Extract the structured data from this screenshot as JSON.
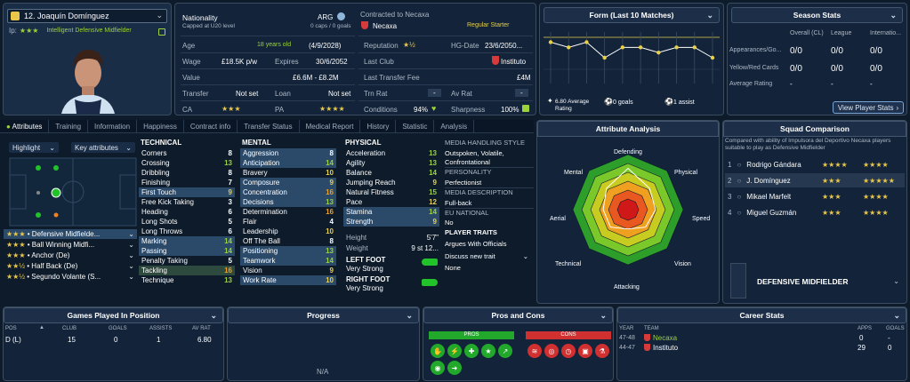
{
  "player": {
    "name": "12. Joaquín Domínguez",
    "desc": "Intelligent  Defensive Midfielder",
    "ip": "Ip:",
    "num_badge": "12"
  },
  "info": {
    "nationality_label": "Nationality",
    "nationality_value": "ARG",
    "capped": "Capped at U20 level",
    "caps": "0 caps / 0 goals",
    "contracted": "Contracted to Necaxa",
    "club": "Necaxa",
    "squad_status": "Regular Starter",
    "age_label": "Age",
    "age_value": "18 years old",
    "dob": "(4/9/2028)",
    "wage_label": "Wage",
    "wage_value": "£18.5K p/w",
    "expires_label": "Expires",
    "expires_value": "30/6/2052",
    "value_label": "Value",
    "value_value": "£6.6M - £8.2M",
    "reputation_label": "Reputation",
    "hg_label": "HG-Date",
    "hg_value": "23/6/2050...",
    "last_club_label": "Last Club",
    "last_club_value": "Instituto",
    "fee_label": "Last Transfer Fee",
    "fee_value": "£4M",
    "transfer_label": "Transfer",
    "transfer_value": "Not set",
    "loan_label": "Loan",
    "loan_value": "Not set",
    "trn_label": "Trn Rat",
    "trn_value": "-",
    "av_label": "Av Rat",
    "av_value": "-",
    "ca_label": "CA",
    "pa_label": "PA",
    "conditions_label": "Conditions",
    "conditions_value": "94%",
    "sharpness_label": "Sharpness",
    "sharpness_value": "100%"
  },
  "form": {
    "title": "Form (Last 10 Matches)",
    "avg": "6.80 Average Rating",
    "goals": "0 goals",
    "assists": "1 assist",
    "values": [
      6.9,
      6.8,
      6.9,
      6.6,
      6.8,
      6.8,
      6.7,
      6.8,
      6.8,
      6.6
    ]
  },
  "season": {
    "title": "Season Stats",
    "cols": [
      "Overall (CL)",
      "League",
      "Internatio..."
    ],
    "rows": [
      {
        "label": "Appearances/Go...",
        "v": [
          "0/0",
          "0/0",
          "0/0"
        ]
      },
      {
        "label": "Yellow/Red Cards",
        "v": [
          "0/0",
          "0/0",
          "0/0"
        ]
      },
      {
        "label": "Average Rating",
        "v": [
          "-",
          "-",
          "-"
        ]
      }
    ],
    "button": "View Player Stats"
  },
  "tabs": [
    "Attributes",
    "Training",
    "Information",
    "Happiness",
    "Contract info",
    "Transfer Status",
    "Medical Report",
    "History",
    "Statistic",
    "Analysis"
  ],
  "highlight": "Highlight",
  "keyattr": "Key attributes",
  "roles": [
    {
      "name": "Defensive Midfielde...",
      "stars": "★★★"
    },
    {
      "name": "Ball Winning Midfi...",
      "stars": "★★★"
    },
    {
      "name": "Anchor (De)",
      "stars": "★★★"
    },
    {
      "name": "Half Back (De)",
      "stars": "★★½"
    },
    {
      "name": "Segundo Volante (S...",
      "stars": "★★½"
    }
  ],
  "technical": {
    "title": "TECHNICAL",
    "items": [
      [
        "Corners",
        "8"
      ],
      [
        "Crossing",
        "13"
      ],
      [
        "Dribbling",
        "8"
      ],
      [
        "Finishing",
        "7"
      ],
      [
        "First Touch",
        "9"
      ],
      [
        "Free Kick Taking",
        "3"
      ],
      [
        "Heading",
        "6"
      ],
      [
        "Long Shots",
        "5"
      ],
      [
        "Long Throws",
        "6"
      ],
      [
        "Marking",
        "14"
      ],
      [
        "Passing",
        "14"
      ],
      [
        "Penalty Taking",
        "5"
      ],
      [
        "Tackling",
        "16"
      ],
      [
        "Technique",
        "13"
      ]
    ]
  },
  "mental": {
    "title": "MENTAL",
    "items": [
      [
        "Aggression",
        "8"
      ],
      [
        "Anticipation",
        "14"
      ],
      [
        "Bravery",
        "10"
      ],
      [
        "Composure",
        "9"
      ],
      [
        "Concentration",
        "16"
      ],
      [
        "Decisions",
        "13"
      ],
      [
        "Determination",
        "16"
      ],
      [
        "Flair",
        "4"
      ],
      [
        "Leadership",
        "10"
      ],
      [
        "Off The Ball",
        "8"
      ],
      [
        "Positioning",
        "13"
      ],
      [
        "Teamwork",
        "14"
      ],
      [
        "Vision",
        "9"
      ],
      [
        "Work Rate",
        "10"
      ]
    ]
  },
  "physical": {
    "title": "PHYSICAL",
    "items": [
      [
        "Acceleration",
        "13"
      ],
      [
        "Agility",
        "13"
      ],
      [
        "Balance",
        "14"
      ],
      [
        "Jumping Reach",
        "9"
      ],
      [
        "Natural Fitness",
        "15"
      ],
      [
        "Pace",
        "12"
      ],
      [
        "Stamina",
        "14"
      ],
      [
        "Strength",
        "9"
      ]
    ]
  },
  "physical_extra": {
    "height_label": "Height",
    "height_value": "5'7\"",
    "weight_label": "Weight",
    "weight_value": "9 st 12...",
    "left_foot_label": "LEFT FOOT",
    "left_foot_value": "Very Strong",
    "right_foot_label": "RIGHT FOOT",
    "right_foot_value": "Very Strong"
  },
  "media": {
    "style_title": "MEDIA HANDLING STYLE",
    "style_value": "Outspoken, Volatile, Confrontational",
    "personality_title": "PERSONALITY",
    "personality_value": "Perfectionist",
    "desc_title": "MEDIA DESCRIPTION",
    "desc_value": "Full-back",
    "eu_title": "EU NATIONAL",
    "eu_value": "No",
    "traits_title": "PLAYER TRAITS",
    "trait1": "Argues With Officials",
    "discuss": "Discuss new trait",
    "none": "None"
  },
  "analysis": {
    "title": "Attribute Analysis",
    "labels": [
      "Defending",
      "Physical",
      "Speed",
      "Vision",
      "Attacking",
      "Technical",
      "Aerial",
      "Mental"
    ]
  },
  "squad": {
    "title": "Squad Comparison",
    "desc": "Compared with ability of Impulsora del Deportivo Necaxa players suitable to play as Defensive Midfielder",
    "players": [
      {
        "n": "1",
        "name": "Rodrigo Gándara",
        "s1": "★★★★",
        "s2": "★★★★"
      },
      {
        "n": "2",
        "name": "J. Domínguez",
        "s1": "★★★",
        "s2": "★★★★★"
      },
      {
        "n": "3",
        "name": "Mikael Marfelt",
        "s1": "★★★",
        "s2": "★★★★"
      },
      {
        "n": "4",
        "name": "Miguel Guzmán",
        "s1": "★★★",
        "s2": "★★★★"
      }
    ],
    "position": "DEFENSIVE MIDFIELDER"
  },
  "games": {
    "title": "Games Played In Position",
    "cols": [
      "POS",
      "CLUB",
      "GOALS",
      "ASSISTS",
      "AV RAT"
    ],
    "row": [
      "D (L)",
      "15",
      "0",
      "1",
      "6.80"
    ]
  },
  "progress": {
    "title": "Progress",
    "na": "N/A"
  },
  "pros": {
    "title": "Pros and Cons",
    "pros": "PROS",
    "cons": "CONS"
  },
  "career": {
    "title": "Career Stats",
    "cols": [
      "YEAR",
      "TEAM",
      "APPS",
      "GOALS"
    ],
    "rows": [
      [
        "47-48",
        "Necaxa",
        "0",
        "-"
      ],
      [
        "44-47",
        "Instituto",
        "29",
        "0"
      ]
    ]
  }
}
